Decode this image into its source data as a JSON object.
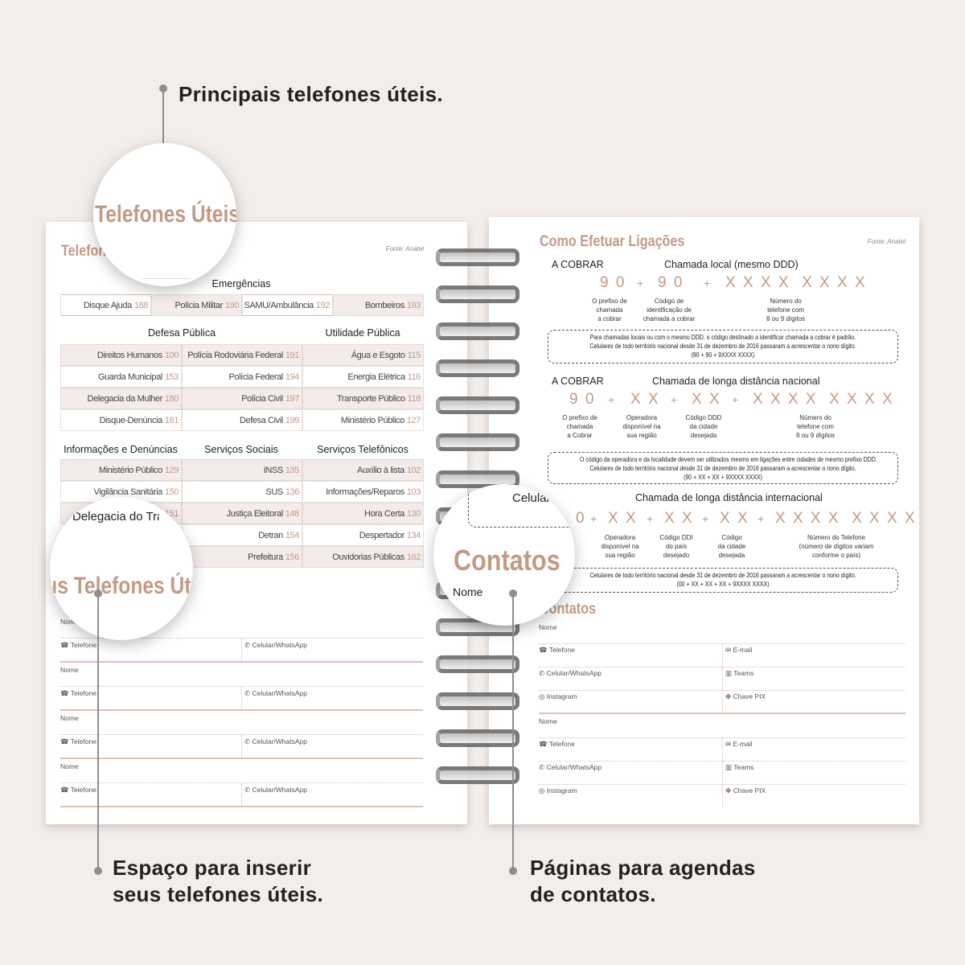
{
  "callouts": {
    "top": "Principais telefones úteis.",
    "bottom_left": [
      "Espaço para inserir",
      "seus telefones úteis."
    ],
    "bottom_right": [
      "Páginas para agendas",
      "de contatos."
    ]
  },
  "colors": {
    "accent": "#c49a85",
    "background": "#f4eeeb"
  },
  "left_page": {
    "title": "Telefones Úteis",
    "source": "Fonte: Anatel",
    "emergencias": {
      "heading": "Emergências",
      "items": [
        {
          "name": "Disque Ajuda",
          "num": "188"
        },
        {
          "name": "Polícia Militar",
          "num": "190"
        },
        {
          "name": "SAMU/Ambulância",
          "num": "192"
        },
        {
          "name": "Bombeiros",
          "num": "193"
        }
      ]
    },
    "defesa": {
      "heading": "Defesa Pública",
      "col1": [
        {
          "name": "Direitos Humanos",
          "num": "100"
        },
        {
          "name": "Guarda Municipal",
          "num": "153"
        },
        {
          "name": "Delegacia da Mulher",
          "num": "180"
        },
        {
          "name": "Disque-Denúncia",
          "num": "181"
        }
      ],
      "col2": [
        {
          "name": "Polícia Rodoviária Federal",
          "num": "191"
        },
        {
          "name": "Polícia Federal",
          "num": "194"
        },
        {
          "name": "Polícia Civil",
          "num": "197"
        },
        {
          "name": "Defesa Civil",
          "num": "199"
        }
      ]
    },
    "utilidade": {
      "heading": "Utilidade Pública",
      "items": [
        {
          "name": "Água e Esgoto",
          "num": "115"
        },
        {
          "name": "Energia Elétrica",
          "num": "116"
        },
        {
          "name": "Transporte Público",
          "num": "118"
        },
        {
          "name": "Ministério Público",
          "num": "127"
        }
      ]
    },
    "informacoes": {
      "heading": "Informações e Denúncias",
      "items": [
        {
          "name": "Ministério Público",
          "num": "129"
        },
        {
          "name": "Vigilância Sanitária",
          "num": "150"
        },
        {
          "name": "",
          "num": "151"
        }
      ]
    },
    "sociais": {
      "heading": "Serviços Sociais",
      "items": [
        {
          "name": "INSS",
          "num": "135"
        },
        {
          "name": "SUS",
          "num": "136"
        },
        {
          "name": "Justiça Eleitoral",
          "num": "148"
        },
        {
          "name": "Detran",
          "num": "154"
        },
        {
          "name": "Prefeitura",
          "num": "156"
        }
      ]
    },
    "telefonicos": {
      "heading": "Serviços Telefônicos",
      "items": [
        {
          "name": "Auxílio à lista",
          "num": "102"
        },
        {
          "name": "Informações/Reparos",
          "num": "103"
        },
        {
          "name": "Hora Certa",
          "num": "130"
        },
        {
          "name": "Despertador",
          "num": "134"
        },
        {
          "name": "Ouvidorias Públicas",
          "num": "162"
        }
      ]
    },
    "meus": {
      "title": "Meus Telefones Úteis",
      "name_label": "Nome",
      "phone_label": "Telefone",
      "mobile_label": "Celular/WhatsApp"
    }
  },
  "lenses": {
    "one": "Telefones Úteis",
    "two_title": "Meus Telefones Úteis",
    "two_text": "Delegacia do Trabalho",
    "three_title": "Contatos",
    "three_name": "Nome",
    "three_text": "Celular"
  },
  "right_page": {
    "title": "Como Efetuar Ligações",
    "source": "Fonte: Anatel",
    "local": {
      "tag": "A COBRAR",
      "heading": "Chamada local (mesmo DDD)",
      "digits": [
        "9 0",
        "+",
        "9 0",
        "+",
        "X X X X  X X X X"
      ],
      "labels": [
        "O prefixo de\nchamada\na cobrar",
        "Código de\nidentificação de\nchamada a cobrar",
        "Número do\ntelefone com\n8 ou 9 dígitos"
      ],
      "note": [
        "Para chamadas locais ou com o mesmo DDD, o código destinado a identificar chamada a cobrar é padrão.",
        "Celulares de todo território nacional desde 31 de dezembro de 2016 passaram a  acrescentar o nono dígito.",
        "(90 + 90 + 9XXXX XXXX)"
      ]
    },
    "nacional": {
      "tag": "A COBRAR",
      "heading": "Chamada de longa distância nacional",
      "digits": [
        "9 0",
        "+",
        "X X",
        "+",
        "X X",
        "+",
        "X X X X  X X X X"
      ],
      "labels": [
        "O prefixo de\nchamada\na Cobrar",
        "Operadora\ndisponível na\nsua região",
        "Código DDD\nda cidade\ndesejada",
        "Número do\ntelefone com\n8 ou 9 dígitos"
      ],
      "note": [
        "O código da operadora e da localidade devem ser utilizados mesmo em ligações entre cidades de mesmo prefixo DDD.",
        "Celulares de todo território nacional desde 31 de dezembro de 2016 passaram a  acrescentar o nono dígito.",
        "(90 + XX + XX + 9XXXX XXXX)"
      ]
    },
    "internacional": {
      "heading": "Chamada de longa distância internacional",
      "digits": [
        "0",
        "+",
        "X X",
        "+",
        "X X",
        "+",
        "X X",
        "+",
        "X X X X  X X X X"
      ],
      "labels": [
        "Operadora\ndisponível na\nsua região",
        "Código DDI\ndo país\ndesejado",
        "Código\nda cidade\ndesejada",
        "Número do Telefone\n(número de dígitos variam\nconforme o país)"
      ],
      "note": [
        "Celulares de todo território nacional desde 31 de dezembro de 2016 passaram a  acrescentar o nono dígito.",
        "(00 + XX + XX + XX + 9XXXX XXXX)"
      ]
    },
    "contatos": {
      "title": "Contatos",
      "name_label": "Nome",
      "fields": [
        "Telefone",
        "E-mail",
        "Celular/WhatsApp",
        "Teams",
        "Instagram",
        "Chave PIX"
      ]
    }
  }
}
